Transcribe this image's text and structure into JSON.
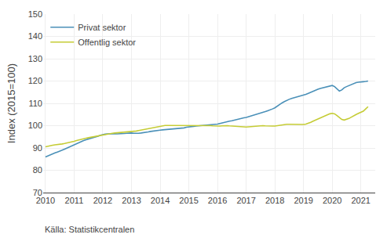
{
  "chart_data": {
    "type": "line",
    "ylabel": "Index (2015=100)",
    "annotations": [
      "Källa: Statistikcentralen"
    ],
    "xlim": [
      2009.92,
      2021.5
    ],
    "ylim": [
      70,
      150
    ],
    "xticks": [
      2010,
      2011,
      2012,
      2013,
      2014,
      2015,
      2016,
      2017,
      2018,
      2019,
      2020,
      2021
    ],
    "yticks": [
      70,
      80,
      90,
      100,
      110,
      120,
      130,
      140,
      150
    ],
    "grid": true,
    "legend": "upper left",
    "x": [
      2010.0,
      2010.083,
      2010.167,
      2010.25,
      2010.333,
      2010.417,
      2010.5,
      2010.583,
      2010.667,
      2010.75,
      2010.833,
      2010.917,
      2011.0,
      2011.083,
      2011.167,
      2011.25,
      2011.333,
      2011.417,
      2011.5,
      2011.583,
      2011.667,
      2011.75,
      2011.833,
      2011.917,
      2012.0,
      2012.083,
      2012.167,
      2012.25,
      2012.333,
      2012.417,
      2012.5,
      2012.583,
      2012.667,
      2012.75,
      2012.833,
      2012.917,
      2013.0,
      2013.083,
      2013.167,
      2013.25,
      2013.333,
      2013.417,
      2013.5,
      2013.583,
      2013.667,
      2013.75,
      2013.833,
      2013.917,
      2014.0,
      2014.083,
      2014.167,
      2014.25,
      2014.333,
      2014.417,
      2014.5,
      2014.583,
      2014.667,
      2014.75,
      2014.833,
      2014.917,
      2015.0,
      2015.083,
      2015.167,
      2015.25,
      2015.333,
      2015.417,
      2015.5,
      2015.583,
      2015.667,
      2015.75,
      2015.833,
      2015.917,
      2016.0,
      2016.083,
      2016.167,
      2016.25,
      2016.333,
      2016.417,
      2016.5,
      2016.583,
      2016.667,
      2016.75,
      2016.833,
      2016.917,
      2017.0,
      2017.083,
      2017.167,
      2017.25,
      2017.333,
      2017.417,
      2017.5,
      2017.583,
      2017.667,
      2017.75,
      2017.833,
      2017.917,
      2018.0,
      2018.083,
      2018.167,
      2018.25,
      2018.333,
      2018.417,
      2018.5,
      2018.583,
      2018.667,
      2018.75,
      2018.833,
      2018.917,
      2019.0,
      2019.083,
      2019.167,
      2019.25,
      2019.333,
      2019.417,
      2019.5,
      2019.583,
      2019.667,
      2019.75,
      2019.833,
      2019.917,
      2020.0,
      2020.083,
      2020.167,
      2020.25,
      2020.333,
      2020.417,
      2020.5,
      2020.583,
      2020.667,
      2020.75,
      2020.833,
      2020.917,
      2021.0,
      2021.083,
      2021.167,
      2021.25
    ],
    "series": [
      {
        "name": "Privat sektor",
        "color": "#4a90b8",
        "values": [
          86.0,
          86.5,
          87.0,
          87.5,
          87.8,
          88.2,
          88.5,
          89.0,
          89.5,
          90.0,
          90.5,
          91.0,
          91.5,
          92.0,
          92.5,
          93.0,
          93.3,
          93.7,
          94.0,
          94.2,
          94.5,
          95.0,
          95.3,
          95.7,
          96.0,
          96.2,
          96.3,
          96.4,
          96.5,
          96.4,
          96.3,
          96.3,
          96.4,
          96.5,
          96.6,
          96.7,
          96.7,
          96.6,
          96.5,
          96.6,
          96.7,
          96.8,
          97.0,
          97.2,
          97.4,
          97.6,
          97.8,
          98.0,
          98.0,
          98.1,
          98.2,
          98.3,
          98.3,
          98.4,
          98.4,
          98.5,
          98.6,
          98.8,
          99.0,
          99.3,
          99.5,
          99.6,
          99.7,
          99.8,
          99.9,
          100.0,
          100.0,
          100.1,
          100.1,
          100.2,
          100.3,
          100.5,
          100.7,
          101.0,
          101.3,
          101.6,
          101.8,
          102.0,
          102.2,
          102.5,
          102.8,
          103.0,
          103.3,
          103.5,
          103.7,
          104.0,
          104.3,
          104.7,
          105.0,
          105.3,
          105.6,
          106.0,
          106.3,
          106.7,
          107.0,
          107.5,
          108.0,
          108.8,
          109.5,
          110.2,
          110.8,
          111.4,
          111.8,
          112.2,
          112.5,
          112.8,
          113.0,
          113.2,
          113.5,
          114.0,
          114.5,
          115.0,
          115.5,
          116.0,
          116.3,
          116.7,
          117.0,
          117.3,
          117.5,
          117.8,
          118.0,
          117.5,
          116.5,
          115.5,
          116.0,
          117.0,
          117.5,
          118.0,
          118.5,
          119.0,
          119.3,
          119.5,
          119.5,
          119.7,
          119.8,
          120.0
        ]
      },
      {
        "name": "Offentlig sektor",
        "color": "#c5cc35",
        "values": [
          90.5,
          90.8,
          91.0,
          91.2,
          91.4,
          91.5,
          91.5,
          91.8,
          92.0,
          92.2,
          92.4,
          92.6,
          93.0,
          93.3,
          93.6,
          94.0,
          94.2,
          94.4,
          94.6,
          94.8,
          95.0,
          95.2,
          95.4,
          95.6,
          96.0,
          96.2,
          96.3,
          96.5,
          96.6,
          96.7,
          96.8,
          96.8,
          96.8,
          96.9,
          97.0,
          97.1,
          97.2,
          97.4,
          97.6,
          97.8,
          98.0,
          98.3,
          98.5,
          98.7,
          99.0,
          99.2,
          99.4,
          99.6,
          99.8,
          100.0,
          100.1,
          100.1,
          100.1,
          100.1,
          100.1,
          100.0,
          100.0,
          100.0,
          100.0,
          100.0,
          100.0,
          100.0,
          100.0,
          100.1,
          100.1,
          100.2,
          100.2,
          100.1,
          100.0,
          100.0,
          99.9,
          99.8,
          99.8,
          99.8,
          99.9,
          100.0,
          100.0,
          99.9,
          99.8,
          99.7,
          99.6,
          99.5,
          99.4,
          99.4,
          99.4,
          99.5,
          99.6,
          99.7,
          99.8,
          100.0,
          100.0,
          100.0,
          99.9,
          99.8,
          99.8,
          99.8,
          99.8,
          100.0,
          100.2,
          100.4,
          100.5,
          100.6,
          100.6,
          100.6,
          100.5,
          100.5,
          100.4,
          100.4,
          100.5,
          100.7,
          101.0,
          101.5,
          102.0,
          102.5,
          103.0,
          103.5,
          104.0,
          104.5,
          105.0,
          105.3,
          105.5,
          105.3,
          104.5,
          103.5,
          102.8,
          102.5,
          102.8,
          103.2,
          103.8,
          104.5,
          105.0,
          105.5,
          106.0,
          106.5,
          107.5,
          108.5
        ]
      }
    ]
  }
}
